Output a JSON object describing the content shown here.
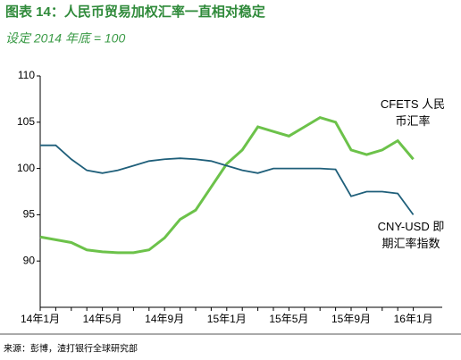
{
  "chart_data": {
    "type": "line",
    "title": "图表 14：人民币贸易加权汇率一直相对稳定",
    "subtitle": "设定 2014 年底 = 100",
    "source": "来源：彭博，渣打银行全球研究部",
    "categories": [
      "14年1月",
      null,
      null,
      null,
      "14年5月",
      null,
      null,
      null,
      "14年9月",
      null,
      null,
      null,
      "15年1月",
      null,
      null,
      null,
      "15年5月",
      null,
      null,
      null,
      "15年9月",
      null,
      null,
      null,
      "16年1月"
    ],
    "series": [
      {
        "name": "CFETS 人民币汇率",
        "label_lines": [
          "CFETS 人民",
          "币汇率"
        ],
        "color": "#6cc24a",
        "values": [
          92.6,
          92.3,
          92.0,
          91.2,
          91.0,
          90.9,
          90.9,
          91.2,
          92.5,
          94.5,
          95.5,
          98.0,
          100.5,
          102.0,
          104.5,
          104.0,
          103.5,
          104.5,
          105.5,
          105.0,
          102.0,
          101.5,
          102.0,
          103.0,
          101.0
        ]
      },
      {
        "name": "CNY-USD 即期汇率指数",
        "label_lines": [
          "CNY-USD 即",
          "期汇率指数"
        ],
        "color": "#1f5f7a",
        "values": [
          102.5,
          102.5,
          101.0,
          99.8,
          99.5,
          99.8,
          100.3,
          100.8,
          101.0,
          101.1,
          101.0,
          100.8,
          100.3,
          99.8,
          99.5,
          100.0,
          100.0,
          100.0,
          100.0,
          99.9,
          97.0,
          97.5,
          97.5,
          97.3,
          95.0
        ]
      }
    ],
    "ylim": [
      85,
      110
    ],
    "yticks": [
      90,
      95,
      100,
      105,
      110
    ],
    "grid": false
  }
}
